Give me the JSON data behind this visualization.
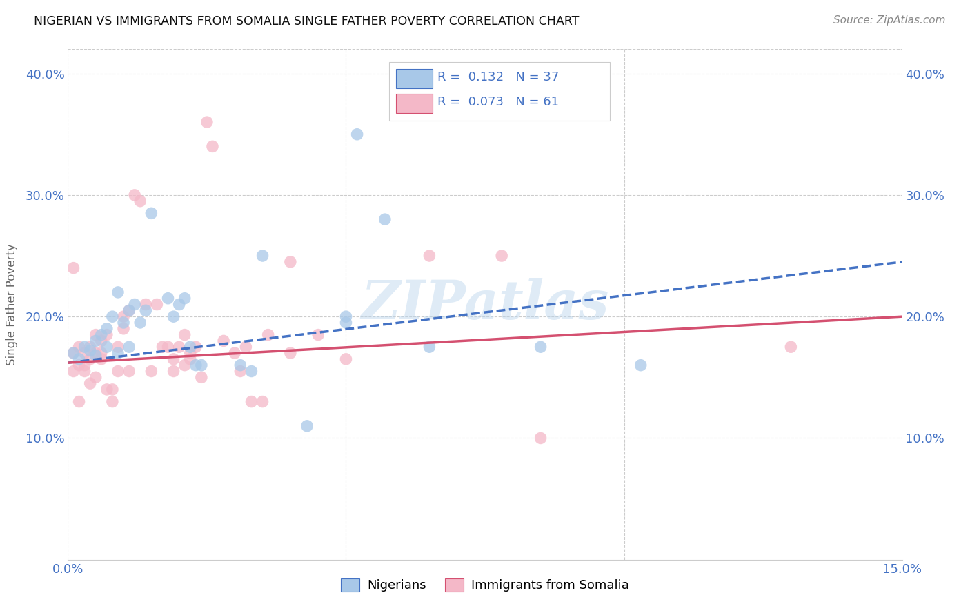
{
  "title": "NIGERIAN VS IMMIGRANTS FROM SOMALIA SINGLE FATHER POVERTY CORRELATION CHART",
  "source": "Source: ZipAtlas.com",
  "ylabel": "Single Father Poverty",
  "xlim": [
    0.0,
    0.15
  ],
  "ylim": [
    0.0,
    0.42
  ],
  "xtick_pos": [
    0.0,
    0.05,
    0.1,
    0.15
  ],
  "xtick_labels": [
    "0.0%",
    "",
    "",
    "15.0%"
  ],
  "ytick_pos": [
    0.1,
    0.2,
    0.3,
    0.4
  ],
  "ytick_labels": [
    "10.0%",
    "20.0%",
    "30.0%",
    "40.0%"
  ],
  "watermark": "ZIPatlas",
  "legend_blue_label": "Nigerians",
  "legend_pink_label": "Immigrants from Somalia",
  "R_blue": 0.132,
  "N_blue": 37,
  "R_pink": 0.073,
  "N_pink": 61,
  "blue_color": "#a8c8e8",
  "pink_color": "#f4b8c8",
  "line_blue_color": "#4472c4",
  "line_pink_color": "#d45070",
  "blue_scatter": [
    [
      0.001,
      0.17
    ],
    [
      0.002,
      0.165
    ],
    [
      0.003,
      0.175
    ],
    [
      0.004,
      0.172
    ],
    [
      0.005,
      0.168
    ],
    [
      0.005,
      0.18
    ],
    [
      0.006,
      0.185
    ],
    [
      0.007,
      0.19
    ],
    [
      0.007,
      0.175
    ],
    [
      0.008,
      0.2
    ],
    [
      0.009,
      0.17
    ],
    [
      0.009,
      0.22
    ],
    [
      0.01,
      0.195
    ],
    [
      0.011,
      0.205
    ],
    [
      0.011,
      0.175
    ],
    [
      0.012,
      0.21
    ],
    [
      0.013,
      0.195
    ],
    [
      0.014,
      0.205
    ],
    [
      0.015,
      0.285
    ],
    [
      0.018,
      0.215
    ],
    [
      0.019,
      0.2
    ],
    [
      0.02,
      0.21
    ],
    [
      0.021,
      0.215
    ],
    [
      0.022,
      0.175
    ],
    [
      0.023,
      0.16
    ],
    [
      0.024,
      0.16
    ],
    [
      0.031,
      0.16
    ],
    [
      0.033,
      0.155
    ],
    [
      0.035,
      0.25
    ],
    [
      0.05,
      0.195
    ],
    [
      0.05,
      0.2
    ],
    [
      0.052,
      0.35
    ],
    [
      0.057,
      0.28
    ],
    [
      0.085,
      0.175
    ],
    [
      0.103,
      0.16
    ],
    [
      0.065,
      0.175
    ],
    [
      0.043,
      0.11
    ]
  ],
  "pink_scatter": [
    [
      0.001,
      0.17
    ],
    [
      0.001,
      0.155
    ],
    [
      0.002,
      0.175
    ],
    [
      0.002,
      0.16
    ],
    [
      0.002,
      0.13
    ],
    [
      0.003,
      0.16
    ],
    [
      0.003,
      0.155
    ],
    [
      0.003,
      0.17
    ],
    [
      0.004,
      0.145
    ],
    [
      0.004,
      0.175
    ],
    [
      0.004,
      0.165
    ],
    [
      0.005,
      0.17
    ],
    [
      0.005,
      0.15
    ],
    [
      0.005,
      0.185
    ],
    [
      0.006,
      0.17
    ],
    [
      0.006,
      0.165
    ],
    [
      0.006,
      0.18
    ],
    [
      0.007,
      0.185
    ],
    [
      0.007,
      0.14
    ],
    [
      0.008,
      0.13
    ],
    [
      0.008,
      0.14
    ],
    [
      0.009,
      0.175
    ],
    [
      0.009,
      0.155
    ],
    [
      0.01,
      0.2
    ],
    [
      0.01,
      0.19
    ],
    [
      0.011,
      0.205
    ],
    [
      0.011,
      0.155
    ],
    [
      0.012,
      0.3
    ],
    [
      0.013,
      0.295
    ],
    [
      0.014,
      0.21
    ],
    [
      0.015,
      0.155
    ],
    [
      0.016,
      0.21
    ],
    [
      0.017,
      0.175
    ],
    [
      0.018,
      0.175
    ],
    [
      0.019,
      0.155
    ],
    [
      0.019,
      0.165
    ],
    [
      0.02,
      0.175
    ],
    [
      0.021,
      0.185
    ],
    [
      0.021,
      0.16
    ],
    [
      0.022,
      0.17
    ],
    [
      0.022,
      0.165
    ],
    [
      0.023,
      0.175
    ],
    [
      0.024,
      0.15
    ],
    [
      0.025,
      0.36
    ],
    [
      0.026,
      0.34
    ],
    [
      0.028,
      0.18
    ],
    [
      0.03,
      0.17
    ],
    [
      0.031,
      0.155
    ],
    [
      0.032,
      0.175
    ],
    [
      0.033,
      0.13
    ],
    [
      0.035,
      0.13
    ],
    [
      0.036,
      0.185
    ],
    [
      0.04,
      0.245
    ],
    [
      0.04,
      0.17
    ],
    [
      0.045,
      0.185
    ],
    [
      0.05,
      0.165
    ],
    [
      0.065,
      0.25
    ],
    [
      0.078,
      0.25
    ],
    [
      0.085,
      0.1
    ],
    [
      0.13,
      0.175
    ],
    [
      0.001,
      0.24
    ]
  ],
  "blue_line": [
    [
      0.0,
      0.162
    ],
    [
      0.15,
      0.245
    ]
  ],
  "pink_line": [
    [
      0.0,
      0.162
    ],
    [
      0.15,
      0.2
    ]
  ]
}
